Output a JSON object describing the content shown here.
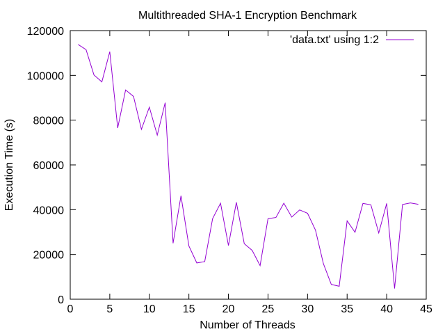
{
  "chart_data": {
    "type": "line",
    "title": "Multithreaded SHA-1 Encryption Benchmark",
    "xlabel": "Number of Threads",
    "ylabel": "Execution Time (s)",
    "xlim": [
      0,
      45
    ],
    "ylim": [
      0,
      120000
    ],
    "xticks": [
      0,
      5,
      10,
      15,
      20,
      25,
      30,
      35,
      40,
      45
    ],
    "yticks": [
      0,
      20000,
      40000,
      60000,
      80000,
      100000,
      120000
    ],
    "grid": false,
    "legend_position": "top-right",
    "series": [
      {
        "name": "'data.txt' using 1:2",
        "color": "#9400d3",
        "x": [
          1,
          2,
          3,
          4,
          5,
          6,
          7,
          8,
          9,
          10,
          11,
          12,
          13,
          14,
          15,
          16,
          17,
          18,
          19,
          20,
          21,
          22,
          23,
          24,
          25,
          26,
          27,
          28,
          29,
          30,
          31,
          32,
          33,
          34,
          35,
          36,
          37,
          38,
          39,
          40,
          41,
          42,
          43,
          44
        ],
        "y": [
          113800,
          111500,
          100200,
          97100,
          110600,
          76500,
          93500,
          90600,
          75900,
          85800,
          73300,
          87800,
          25000,
          46200,
          23800,
          16200,
          16800,
          36000,
          42900,
          24000,
          43300,
          24800,
          21800,
          15000,
          36000,
          36500,
          42900,
          36700,
          39900,
          38400,
          30900,
          15900,
          6600,
          5800,
          35000,
          29900,
          42800,
          42200,
          29600,
          42800,
          4800,
          42300,
          43000,
          42400
        ]
      }
    ]
  }
}
